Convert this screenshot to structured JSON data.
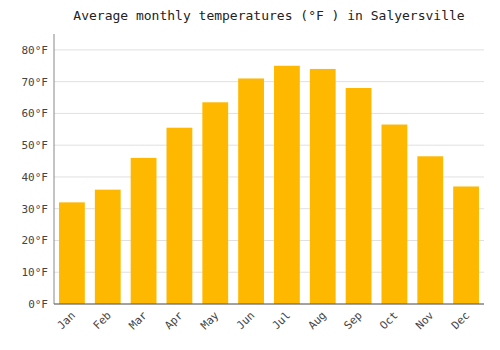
{
  "chart_data": {
    "type": "bar",
    "title": "Average monthly temperatures (°F ) in Salyersville",
    "categories": [
      "Jan",
      "Feb",
      "Mar",
      "Apr",
      "May",
      "Jun",
      "Jul",
      "Aug",
      "Sep",
      "Oct",
      "Nov",
      "Dec"
    ],
    "values": [
      32,
      36,
      46,
      55.5,
      63.5,
      71,
      75,
      74,
      68,
      56.5,
      46.5,
      37
    ],
    "color": "#FFB800",
    "ylim": [
      0,
      85
    ],
    "yticks": [
      {
        "value": 0,
        "label": "0°F"
      },
      {
        "value": 10,
        "label": "10°F"
      },
      {
        "value": 20,
        "label": "20°F"
      },
      {
        "value": 30,
        "label": "30°F"
      },
      {
        "value": 40,
        "label": "40°F"
      },
      {
        "value": 50,
        "label": "50°F"
      },
      {
        "value": 60,
        "label": "60°F"
      },
      {
        "value": 70,
        "label": "70°F"
      },
      {
        "value": 80,
        "label": "80°F"
      }
    ],
    "grid": true
  }
}
